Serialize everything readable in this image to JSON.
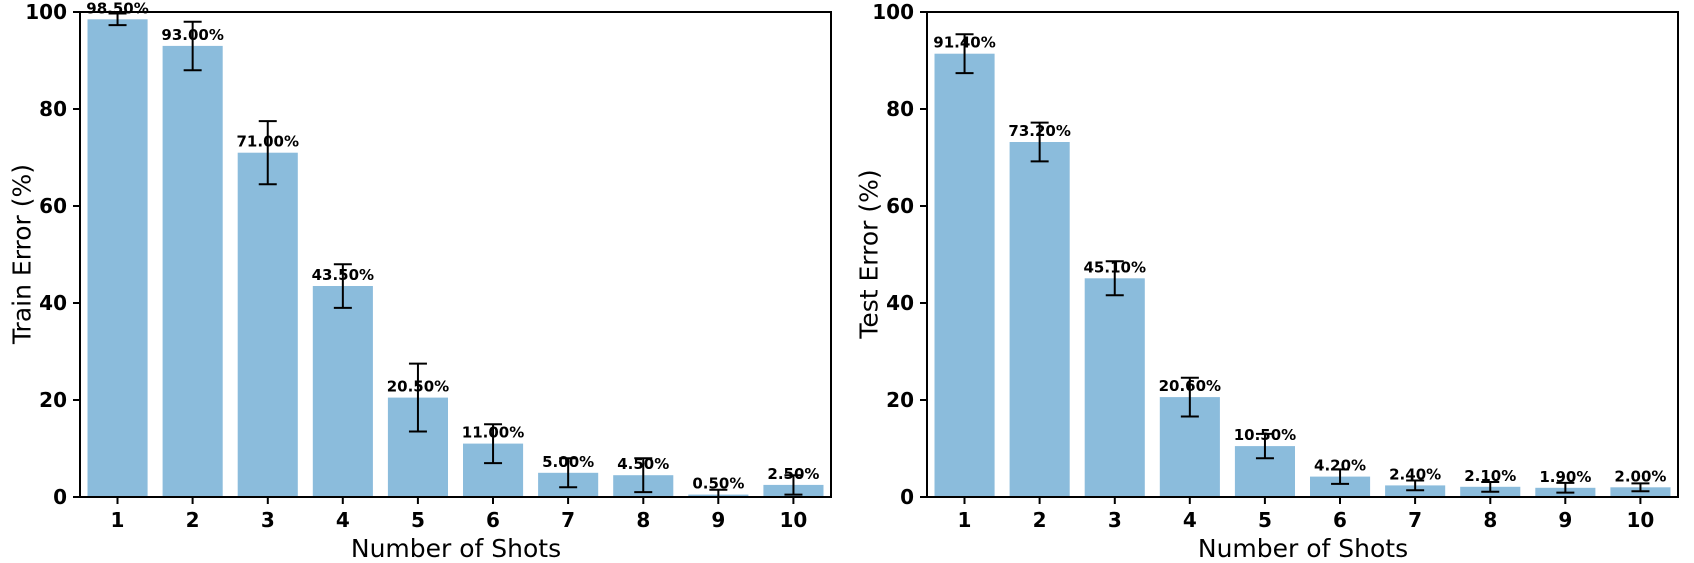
{
  "page": {
    "background": "#ffffff",
    "text_color": "#000000"
  },
  "chart_data": [
    {
      "type": "bar",
      "title": "",
      "xlabel": "Number of Shots",
      "ylabel": "Train Error (%)",
      "categories": [
        "1",
        "2",
        "3",
        "4",
        "5",
        "6",
        "7",
        "8",
        "9",
        "10"
      ],
      "values": [
        98.5,
        93.0,
        71.0,
        43.5,
        20.5,
        11.0,
        5.0,
        4.5,
        0.5,
        2.5
      ],
      "errors": [
        1.2,
        5.0,
        6.5,
        4.5,
        7.0,
        4.0,
        3.0,
        3.5,
        1.0,
        2.0
      ],
      "value_labels": [
        "98.50%",
        "93.00%",
        "71.00%",
        "43.50%",
        "20.50%",
        "11.00%",
        "5.00%",
        "4.50%",
        "0.50%",
        "2.50%"
      ],
      "yticks": [
        0,
        20,
        40,
        60,
        80,
        100
      ],
      "ylim": [
        0,
        100
      ],
      "grid": false,
      "legend": "none",
      "bar_color": "#8bbcdc",
      "error_color": "#000000",
      "spine_color": "#000000"
    },
    {
      "type": "bar",
      "title": "",
      "xlabel": "Number of Shots",
      "ylabel": "Test Error (%)",
      "categories": [
        "1",
        "2",
        "3",
        "4",
        "5",
        "6",
        "7",
        "8",
        "9",
        "10"
      ],
      "values": [
        91.4,
        73.2,
        45.1,
        20.6,
        10.5,
        4.2,
        2.4,
        2.1,
        1.9,
        2.0
      ],
      "errors": [
        4.0,
        4.0,
        3.5,
        4.0,
        2.5,
        1.5,
        1.0,
        1.0,
        1.0,
        0.8
      ],
      "value_labels": [
        "91.40%",
        "73.20%",
        "45.10%",
        "20.60%",
        "10.50%",
        "4.20%",
        "2.40%",
        "2.10%",
        "1.90%",
        "2.00%"
      ],
      "yticks": [
        0,
        20,
        40,
        60,
        80,
        100
      ],
      "ylim": [
        0,
        100
      ],
      "grid": false,
      "legend": "none",
      "bar_color": "#8bbcdc",
      "error_color": "#000000",
      "spine_color": "#000000"
    }
  ]
}
